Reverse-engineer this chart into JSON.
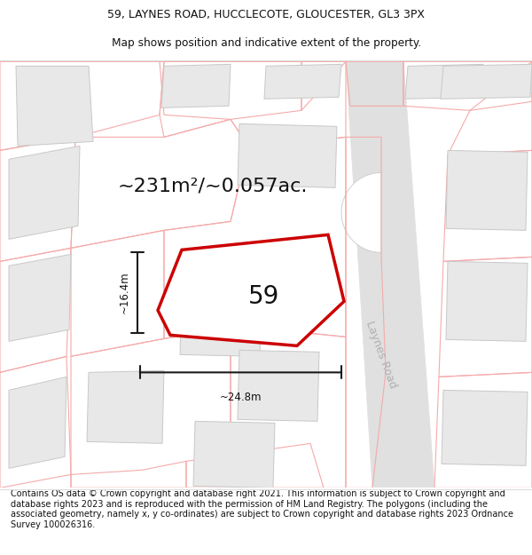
{
  "title_line1": "59, LAYNES ROAD, HUCCLECOTE, GLOUCESTER, GL3 3PX",
  "title_line2": "Map shows position and indicative extent of the property.",
  "area_label": "~231m²/~0.057ac.",
  "property_number": "59",
  "width_label": "~24.8m",
  "height_label": "~16.4m",
  "road_label": "Laynes Road",
  "footer_text": "Contains OS data © Crown copyright and database right 2021. This information is subject to Crown copyright and database rights 2023 and is reproduced with the permission of HM Land Registry. The polygons (including the associated geometry, namely x, y co-ordinates) are subject to Crown copyright and database rights 2023 Ordnance Survey 100026316.",
  "bg_color": "#ffffff",
  "map_bg": "#ffffff",
  "property_fill": "#ffffff",
  "property_edge": "#cc0000",
  "building_fill": "#e8e8e8",
  "building_edge": "#c8c8c8",
  "plot_edge_light": "#f5aaaa",
  "road_color": "#e0e0e0",
  "culdesac_color": "#e8e8e8",
  "dim_color": "#1a1a1a",
  "title_fontsize": 9.0,
  "footer_fontsize": 7.0,
  "area_fontsize": 16,
  "number_fontsize": 20,
  "road_label_fontsize": 9
}
